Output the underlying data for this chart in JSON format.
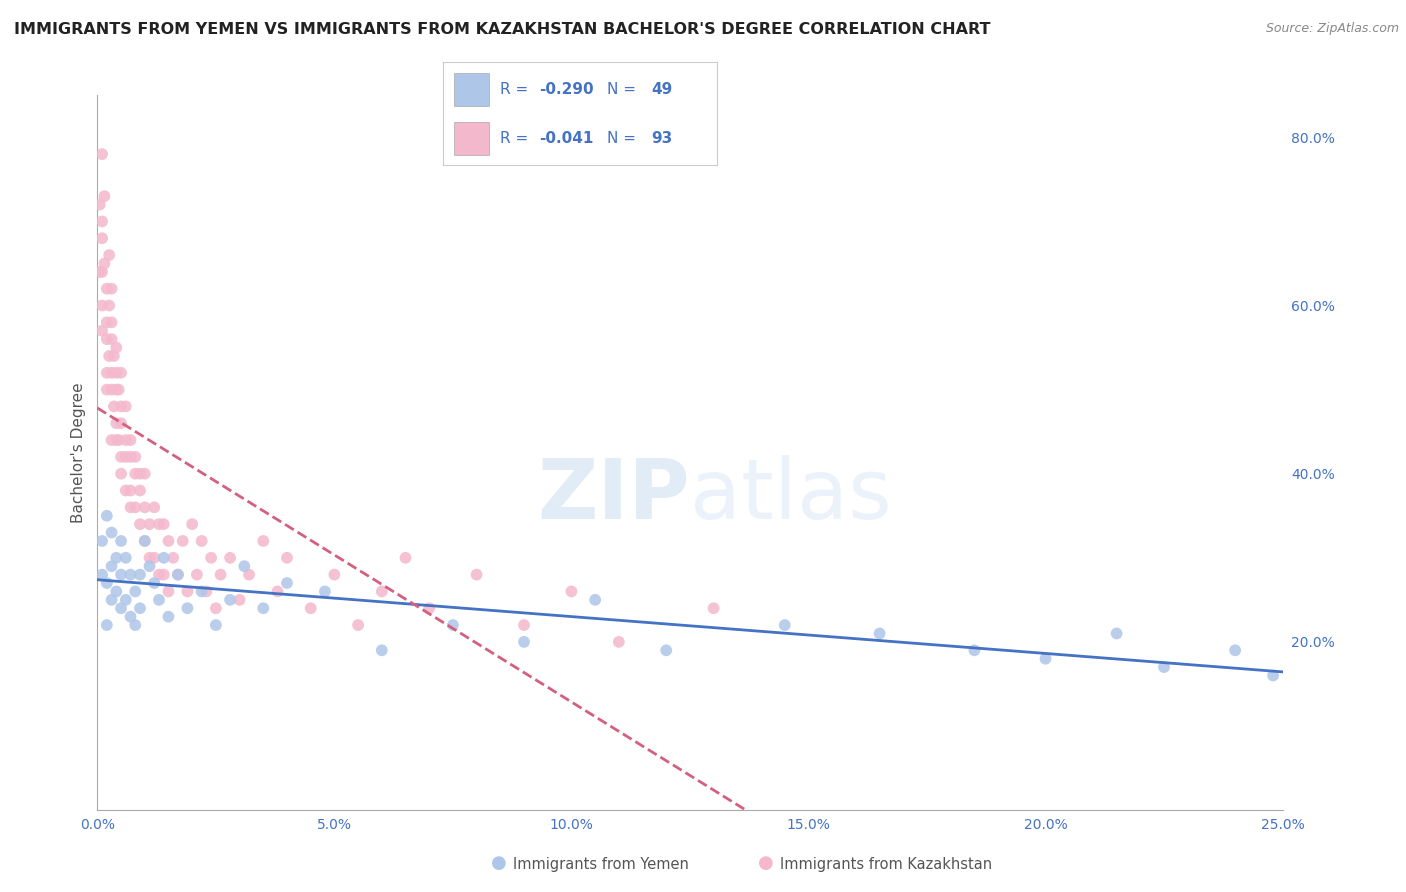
{
  "title": "IMMIGRANTS FROM YEMEN VS IMMIGRANTS FROM KAZAKHSTAN BACHELOR'S DEGREE CORRELATION CHART",
  "source": "Source: ZipAtlas.com",
  "ylabel": "Bachelor's Degree",
  "watermark": "ZIPatlas",
  "series": [
    {
      "name": "Immigrants from Yemen",
      "R": -0.29,
      "N": 49,
      "color": "#aec6e8",
      "trend_color": "#4472c4",
      "trend_style": "solid",
      "x": [
        0.001,
        0.001,
        0.002,
        0.002,
        0.002,
        0.003,
        0.003,
        0.003,
        0.004,
        0.004,
        0.005,
        0.005,
        0.005,
        0.006,
        0.006,
        0.007,
        0.007,
        0.008,
        0.008,
        0.009,
        0.009,
        0.01,
        0.011,
        0.012,
        0.013,
        0.014,
        0.015,
        0.017,
        0.019,
        0.022,
        0.025,
        0.028,
        0.031,
        0.035,
        0.04,
        0.048,
        0.06,
        0.075,
        0.09,
        0.105,
        0.12,
        0.145,
        0.165,
        0.185,
        0.2,
        0.215,
        0.225,
        0.24,
        0.248
      ],
      "y": [
        0.32,
        0.28,
        0.35,
        0.27,
        0.22,
        0.33,
        0.29,
        0.25,
        0.3,
        0.26,
        0.32,
        0.28,
        0.24,
        0.3,
        0.25,
        0.28,
        0.23,
        0.26,
        0.22,
        0.28,
        0.24,
        0.32,
        0.29,
        0.27,
        0.25,
        0.3,
        0.23,
        0.28,
        0.24,
        0.26,
        0.22,
        0.25,
        0.29,
        0.24,
        0.27,
        0.26,
        0.19,
        0.22,
        0.2,
        0.25,
        0.19,
        0.22,
        0.21,
        0.19,
        0.18,
        0.21,
        0.17,
        0.19,
        0.16
      ]
    },
    {
      "name": "Immigrants from Kazakhstan",
      "R": -0.041,
      "N": 93,
      "color": "#f4b8cc",
      "trend_color": "#d46080",
      "trend_style": "dashed",
      "x": [
        0.0005,
        0.0005,
        0.001,
        0.001,
        0.001,
        0.001,
        0.001,
        0.001,
        0.0015,
        0.0015,
        0.002,
        0.002,
        0.002,
        0.002,
        0.002,
        0.0025,
        0.0025,
        0.0025,
        0.003,
        0.003,
        0.003,
        0.003,
        0.003,
        0.003,
        0.0035,
        0.0035,
        0.004,
        0.004,
        0.004,
        0.004,
        0.004,
        0.0045,
        0.0045,
        0.005,
        0.005,
        0.005,
        0.005,
        0.005,
        0.006,
        0.006,
        0.006,
        0.006,
        0.007,
        0.007,
        0.007,
        0.007,
        0.008,
        0.008,
        0.008,
        0.009,
        0.009,
        0.009,
        0.01,
        0.01,
        0.01,
        0.011,
        0.011,
        0.012,
        0.012,
        0.013,
        0.013,
        0.014,
        0.014,
        0.015,
        0.015,
        0.016,
        0.017,
        0.018,
        0.019,
        0.02,
        0.021,
        0.022,
        0.023,
        0.024,
        0.025,
        0.026,
        0.028,
        0.03,
        0.032,
        0.035,
        0.038,
        0.04,
        0.045,
        0.05,
        0.055,
        0.06,
        0.065,
        0.07,
        0.08,
        0.09,
        0.1,
        0.11,
        0.13
      ],
      "y": [
        0.72,
        0.64,
        0.78,
        0.7,
        0.64,
        0.57,
        0.68,
        0.6,
        0.73,
        0.65,
        0.62,
        0.56,
        0.5,
        0.58,
        0.52,
        0.66,
        0.6,
        0.54,
        0.62,
        0.56,
        0.5,
        0.44,
        0.58,
        0.52,
        0.54,
        0.48,
        0.52,
        0.46,
        0.5,
        0.55,
        0.44,
        0.5,
        0.44,
        0.48,
        0.42,
        0.52,
        0.46,
        0.4,
        0.48,
        0.42,
        0.38,
        0.44,
        0.42,
        0.38,
        0.44,
        0.36,
        0.42,
        0.36,
        0.4,
        0.38,
        0.34,
        0.4,
        0.36,
        0.32,
        0.4,
        0.34,
        0.3,
        0.36,
        0.3,
        0.34,
        0.28,
        0.34,
        0.28,
        0.32,
        0.26,
        0.3,
        0.28,
        0.32,
        0.26,
        0.34,
        0.28,
        0.32,
        0.26,
        0.3,
        0.24,
        0.28,
        0.3,
        0.25,
        0.28,
        0.32,
        0.26,
        0.3,
        0.24,
        0.28,
        0.22,
        0.26,
        0.3,
        0.24,
        0.28,
        0.22,
        0.26,
        0.2,
        0.24
      ]
    }
  ],
  "xlim": [
    0.0,
    0.25
  ],
  "ylim": [
    0.0,
    0.85
  ],
  "right_yticks": [
    0.2,
    0.4,
    0.6,
    0.8
  ],
  "right_yticklabels": [
    "20.0%",
    "40.0%",
    "60.0%",
    "80.0%"
  ],
  "xticks": [
    0.0,
    0.05,
    0.1,
    0.15,
    0.2,
    0.25
  ],
  "xticklabels": [
    "0.0%",
    "5.0%",
    "10.0%",
    "15.0%",
    "20.0%",
    "25.0%"
  ],
  "bg_color": "#ffffff",
  "grid_color": "#d8d8d8",
  "title_color": "#222222",
  "title_fontsize": 11.5,
  "axis_tick_color": "#4472c4",
  "marker_size": 72,
  "legend_text_color": "#4472c4",
  "trend_linewidth": 2.0
}
